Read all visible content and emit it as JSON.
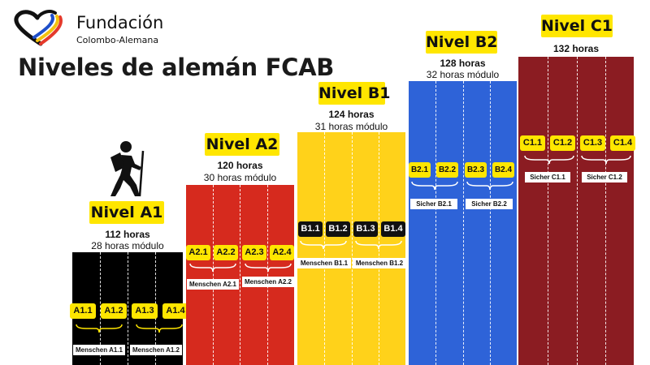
{
  "logo": {
    "name": "Fundación",
    "subtitle": "Colombo-Alemana"
  },
  "title": "Niveles de alemán FCAB",
  "levels": {
    "a1": {
      "name": "Nivel A1",
      "hours": "112 horas",
      "module": "28 horas módulo",
      "color": "#000000",
      "tags": [
        "A1.1",
        "A1.2",
        "A1.3",
        "A1.4"
      ],
      "labels": [
        "Menschen A1.1",
        "Menschen A1.2"
      ]
    },
    "a2": {
      "name": "Nivel A2",
      "hours": "120 horas",
      "module": "30 horas módulo",
      "color": "#d62a1e",
      "tags": [
        "A2.1",
        "A2.2",
        "A2.3",
        "A2.4"
      ],
      "labels": [
        "Menschen A2.1",
        "Menschen A2.2"
      ]
    },
    "b1": {
      "name": "Nivel B1",
      "hours": "124 horas",
      "module": "31 horas módulo",
      "color": "#ffd21a",
      "tags": [
        "B1.1",
        "B1.2",
        "B1.3",
        "B1.4"
      ],
      "labels": [
        "Menschen B1.1",
        "Menschen B1.2"
      ]
    },
    "b2": {
      "name": "Nivel B2",
      "hours": "128 horas",
      "module": "32 horas módulo",
      "color": "#2e63d8",
      "tags": [
        "B2.1",
        "B2.2",
        "B2.3",
        "B2.4"
      ],
      "labels": [
        "Sicher B2.1",
        "Sicher B2.2"
      ]
    },
    "c1": {
      "name": "Nivel C1",
      "hours": "132 horas",
      "color": "#8b1c22",
      "tags": [
        "C1.1",
        "C1.2",
        "C1.3",
        "C1.4"
      ],
      "labels": [
        "Sicher C1.1",
        "Sicher C1.2"
      ]
    }
  },
  "icons": {
    "logo": "heart-logo-icon",
    "hiker": "hiker-icon"
  }
}
